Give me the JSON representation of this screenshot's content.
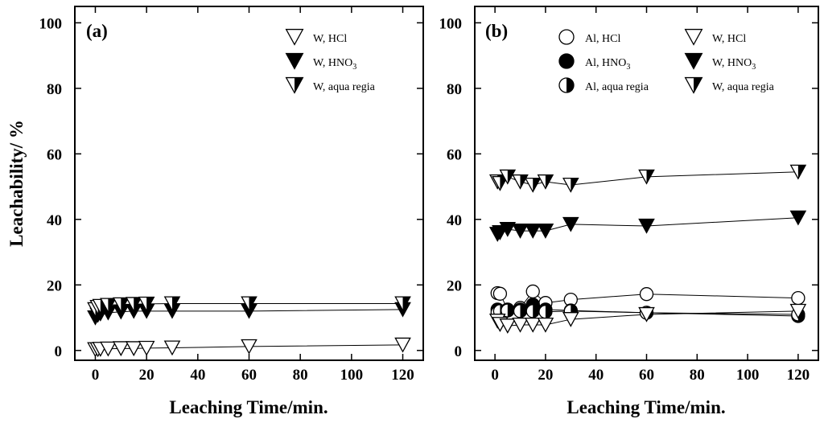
{
  "chart_data": [
    {
      "panel": "(a)",
      "type": "line",
      "xlabel": "Leaching Time/min.",
      "ylabel": "Leachability/ %",
      "xlim": [
        -8,
        128
      ],
      "ylim": [
        -3,
        105
      ],
      "xticks": [
        0,
        20,
        40,
        60,
        80,
        100,
        120
      ],
      "yticks": [
        0,
        20,
        40,
        60,
        80,
        100
      ],
      "legend_position": "top-right",
      "series": [
        {
          "name": "W, HCl",
          "label_main": "W, HCl",
          "label_sub": "",
          "marker": "triangle-open",
          "x": [
            0,
            1,
            2,
            5,
            10,
            15,
            20,
            30,
            60,
            120
          ],
          "y": [
            0.3,
            0.3,
            0.4,
            0.5,
            0.6,
            0.6,
            0.7,
            0.8,
            1.2,
            1.7
          ]
        },
        {
          "name": "W, HNO3",
          "label_main": "W, HNO",
          "label_sub": "3",
          "marker": "triangle-filled",
          "x": [
            0,
            1,
            2,
            5,
            10,
            15,
            20,
            30,
            60,
            120
          ],
          "y": [
            10,
            10.8,
            11.2,
            11.5,
            11.8,
            12,
            12,
            12,
            12,
            12.5
          ]
        },
        {
          "name": "W, aqua regia",
          "label_main": "W, aqua regia",
          "label_sub": "",
          "marker": "triangle-half",
          "x": [
            0,
            1,
            2,
            5,
            10,
            15,
            20,
            30,
            60,
            120
          ],
          "y": [
            12.5,
            13.2,
            13.5,
            13.8,
            14,
            14.1,
            14.2,
            14.3,
            14.3,
            14.3
          ]
        }
      ]
    },
    {
      "panel": "(b)",
      "type": "line",
      "xlabel": "Leaching Time/min.",
      "ylabel": "",
      "xlim": [
        -8,
        128
      ],
      "ylim": [
        -3,
        105
      ],
      "xticks": [
        0,
        20,
        40,
        60,
        80,
        100,
        120
      ],
      "yticks": [
        0,
        20,
        40,
        60,
        80,
        100
      ],
      "legend_position": "top-right",
      "series": [
        {
          "name": "Al, HCl",
          "label_main": "Al, HCl",
          "label_sub": "",
          "marker": "circle-open",
          "x": [
            1,
            2,
            5,
            10,
            15,
            20,
            30,
            60,
            120
          ],
          "y": [
            17.5,
            17.3,
            12.5,
            13,
            18,
            14.5,
            15.5,
            17.2,
            16
          ]
        },
        {
          "name": "Al, HNO3",
          "label_main": "Al, HNO",
          "label_sub": "3",
          "marker": "circle-filled",
          "x": [
            1,
            2,
            5,
            10,
            15,
            20,
            30,
            60,
            120
          ],
          "y": [
            12.5,
            12,
            12.2,
            12.5,
            14,
            12.5,
            12.2,
            11.5,
            10.5
          ]
        },
        {
          "name": "Al, aqua regia",
          "label_main": "Al, aqua regia",
          "label_sub": "",
          "marker": "circle-half",
          "x": [
            1,
            2,
            5,
            10,
            15,
            20,
            30,
            60,
            120
          ],
          "y": [
            11.5,
            12,
            12.2,
            12,
            12,
            11.8,
            12,
            11.5,
            11
          ]
        },
        {
          "name": "W, HCl",
          "label_main": "W, HCl",
          "label_sub": "",
          "marker": "triangle-open",
          "x": [
            1,
            2,
            5,
            10,
            15,
            20,
            30,
            60,
            120
          ],
          "y": [
            9,
            8,
            7.5,
            7.8,
            7.8,
            7.8,
            9.5,
            11,
            12
          ]
        },
        {
          "name": "W, HNO3",
          "label_main": "W, HNO",
          "label_sub": "3",
          "marker": "triangle-filled",
          "x": [
            1,
            2,
            5,
            10,
            15,
            20,
            30,
            60,
            120
          ],
          "y": [
            35.5,
            36,
            37,
            36.5,
            36.5,
            36.5,
            38.5,
            38,
            40.5
          ]
        },
        {
          "name": "W, aqua regia",
          "label_main": "W, aqua regia",
          "label_sub": "",
          "marker": "triangle-half",
          "x": [
            1,
            2,
            5,
            10,
            15,
            20,
            30,
            60,
            120
          ],
          "y": [
            51.5,
            51,
            53,
            51.5,
            50.5,
            51.5,
            50.5,
            53,
            54.5
          ]
        }
      ]
    }
  ]
}
